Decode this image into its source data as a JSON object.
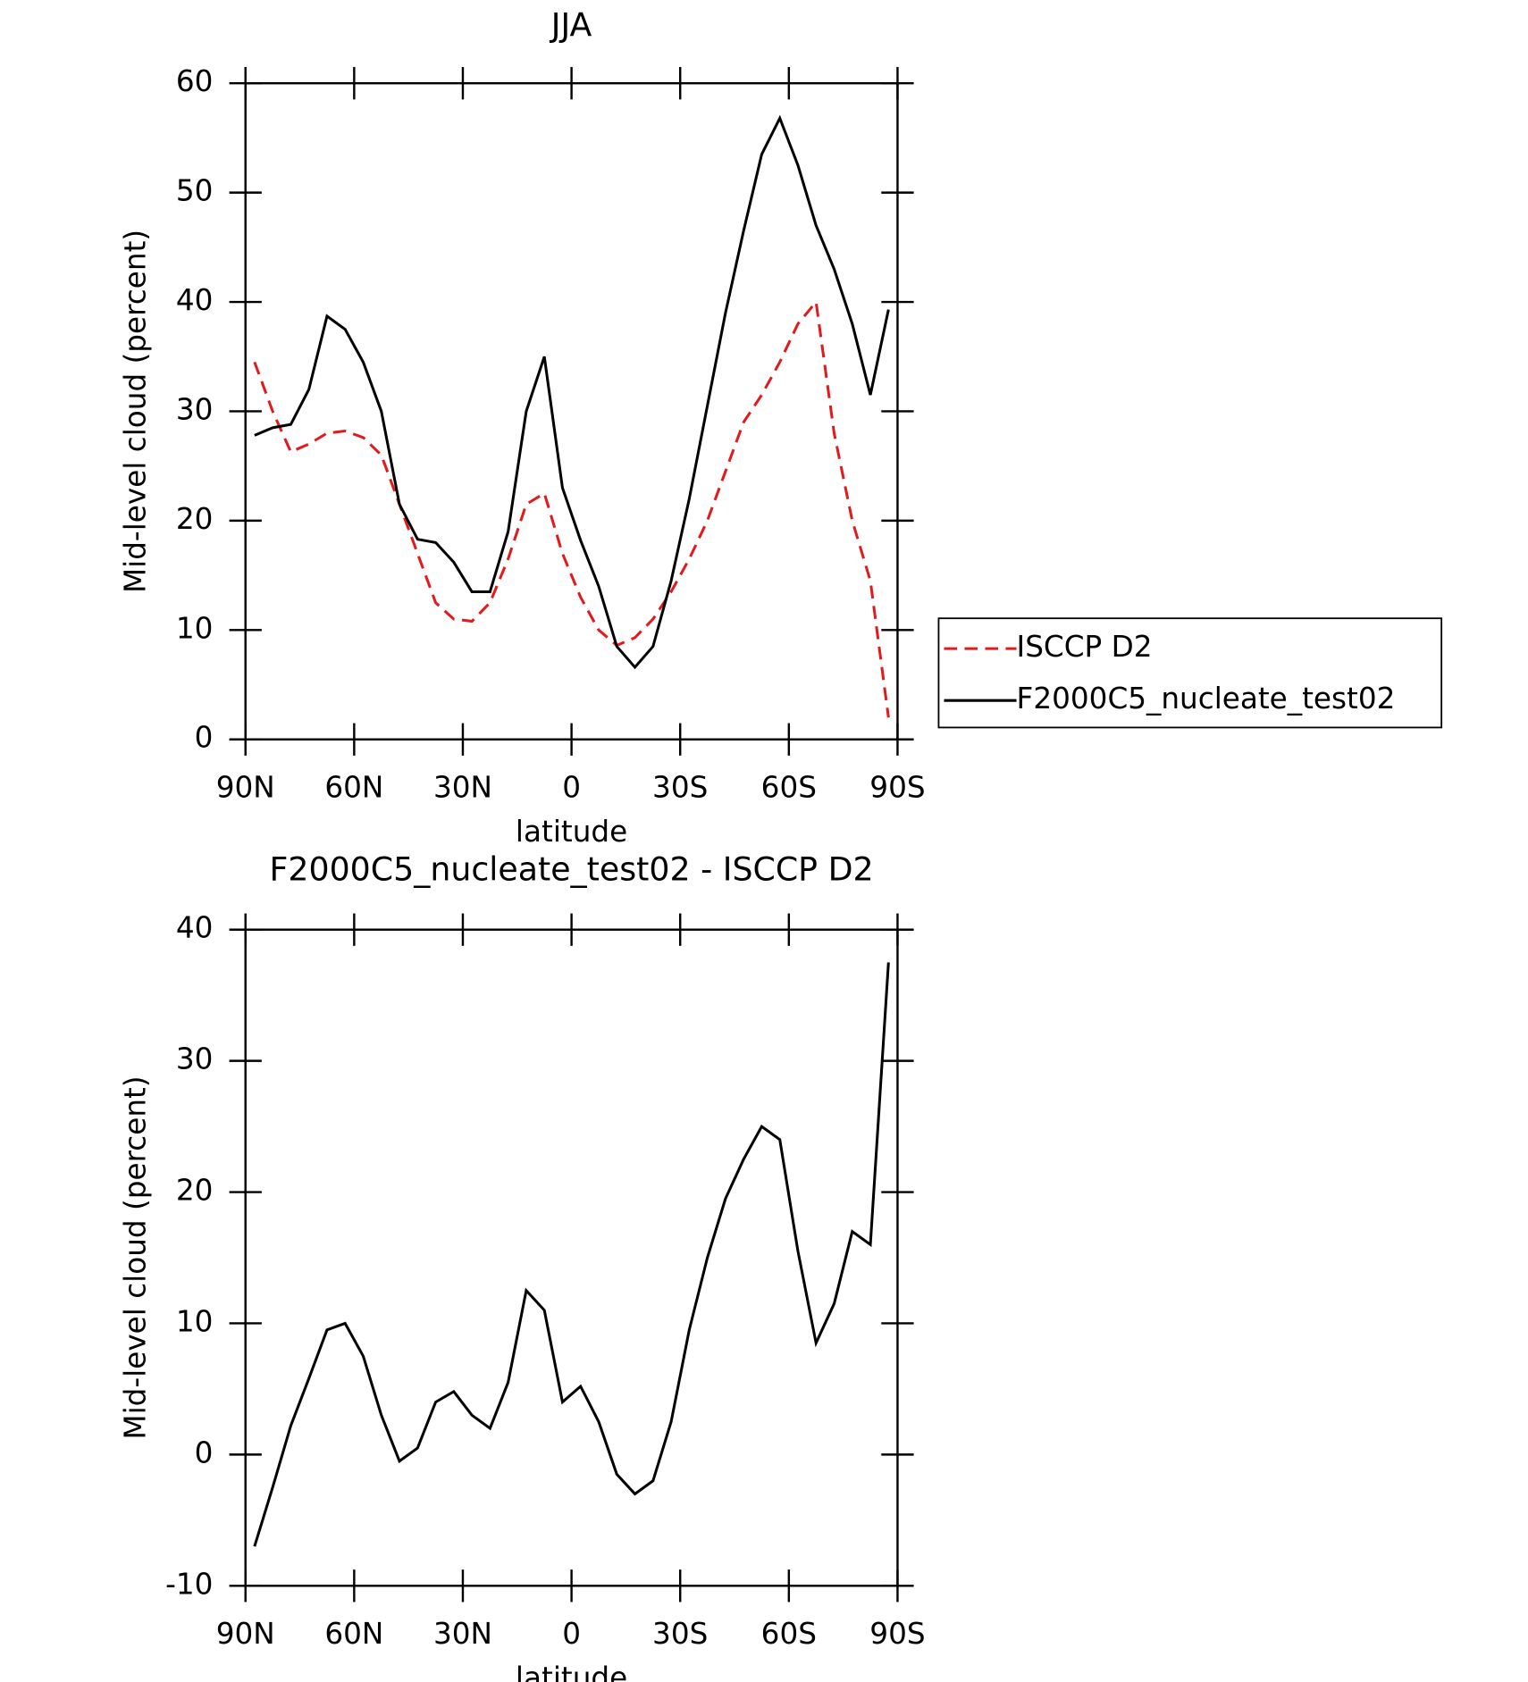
{
  "chart_data": [
    {
      "type": "line",
      "title": "JJA",
      "x_label": "latitude",
      "y_label": "Mid-level cloud (percent)",
      "x": [
        87.5,
        82.5,
        77.5,
        72.5,
        67.5,
        62.5,
        57.5,
        52.5,
        47.5,
        42.5,
        37.5,
        32.5,
        27.5,
        22.5,
        17.5,
        12.5,
        7.5,
        2.5,
        -2.5,
        -7.5,
        -12.5,
        -17.5,
        -22.5,
        -27.5,
        -32.5,
        -37.5,
        -42.5,
        -47.5,
        -52.5,
        -57.5,
        -62.5,
        -67.5,
        -72.5,
        -77.5,
        -82.5,
        -87.5
      ],
      "series": [
        {
          "name": "ISCCP D2",
          "color": "#e31a1c",
          "style": "dashed",
          "values": [
            34.5,
            30,
            26.3,
            27,
            28,
            28.2,
            27.6,
            26,
            21.5,
            17,
            12.5,
            11,
            10.8,
            12.5,
            16.5,
            21.5,
            22.5,
            17,
            13,
            10,
            8.6,
            9.3,
            11,
            13.5,
            16.5,
            20,
            24.5,
            29,
            31.5,
            34.5,
            38,
            40,
            28,
            20,
            14.5,
            2
          ]
        },
        {
          "name": "F2000C5_nucleate_test02",
          "color": "#000000",
          "style": "solid",
          "values": [
            27.8,
            28.5,
            28.8,
            32,
            38.7,
            37.5,
            34.5,
            30,
            21.5,
            18.3,
            18,
            16.2,
            13.5,
            13.5,
            19,
            30,
            35,
            23,
            18.2,
            14,
            8.5,
            6.6,
            8.5,
            14.5,
            22,
            30.5,
            39,
            46.5,
            53.5,
            56.8,
            52.5,
            47,
            43,
            38,
            31.5,
            39.3
          ]
        }
      ],
      "xlim": [
        90,
        -90
      ],
      "xticks": [
        {
          "value": 90,
          "label": "90N"
        },
        {
          "value": 60,
          "label": "60N"
        },
        {
          "value": 30,
          "label": "30N"
        },
        0,
        {
          "value": -30,
          "label": "30S"
        },
        {
          "value": -60,
          "label": "60S"
        },
        {
          "value": -90,
          "label": "90S"
        }
      ],
      "ylim": [
        0,
        60
      ],
      "yticks": [
        0,
        10,
        20,
        30,
        40,
        50,
        60
      ],
      "legend": "right"
    },
    {
      "type": "line",
      "title": "F2000C5_nucleate_test02 - ISCCP D2",
      "x_label": "latitude",
      "y_label": "Mid-level cloud (percent)",
      "x": [
        87.5,
        82.5,
        77.5,
        72.5,
        67.5,
        62.5,
        57.5,
        52.5,
        47.5,
        42.5,
        37.5,
        32.5,
        27.5,
        22.5,
        17.5,
        12.5,
        7.5,
        2.5,
        -2.5,
        -7.5,
        -12.5,
        -17.5,
        -22.5,
        -27.5,
        -32.5,
        -37.5,
        -42.5,
        -47.5,
        -52.5,
        -57.5,
        -62.5,
        -67.5,
        -72.5,
        -77.5,
        -82.5,
        -87.5
      ],
      "series": [
        {
          "color": "#000000",
          "style": "solid",
          "values": [
            -7,
            -2.5,
            2.2,
            5.8,
            9.5,
            10,
            7.5,
            3,
            -0.5,
            0.5,
            4,
            4.8,
            3,
            2,
            5.5,
            12.5,
            11,
            4,
            5.2,
            2.5,
            -1.5,
            -3,
            -2,
            2.5,
            9.5,
            15,
            19.5,
            22.5,
            25,
            24,
            15.5,
            8.5,
            11.5,
            17,
            16,
            37.5
          ]
        }
      ],
      "xlim": [
        90,
        -90
      ],
      "xticks": [
        {
          "value": 90,
          "label": "90N"
        },
        {
          "value": 60,
          "label": "60N"
        },
        {
          "value": 30,
          "label": "30N"
        },
        0,
        {
          "value": -30,
          "label": "30S"
        },
        {
          "value": -60,
          "label": "60S"
        },
        {
          "value": -90,
          "label": "90S"
        }
      ],
      "ylim": [
        -10,
        40
      ],
      "yticks": [
        -10,
        0,
        10,
        20,
        30,
        40
      ]
    }
  ]
}
